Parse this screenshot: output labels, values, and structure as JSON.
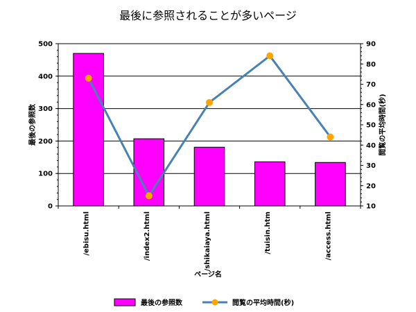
{
  "chart_data": {
    "type": "bar",
    "title": "最後に参照されることが多いページ",
    "xlabel": "ページ名",
    "ylabel_left": "最後の参照数",
    "ylabel_right": "閲覧の平均時間(秒)",
    "categories": [
      "/ebisu.html",
      "/index2.html",
      "/shikaiaya.html",
      "/tuisin.htm",
      "/access.html"
    ],
    "ylim_left": [
      0,
      500
    ],
    "yticks_left": [
      0,
      100,
      200,
      300,
      400,
      500
    ],
    "ylim_right": [
      10,
      90
    ],
    "yticks_right": [
      10,
      20,
      30,
      40,
      50,
      60,
      70,
      80,
      90
    ],
    "grid": true,
    "legend_position": "bottom",
    "series": [
      {
        "name": "最後の参照数",
        "kind": "bar",
        "axis": "left",
        "color": "#ff00ff",
        "values": [
          470,
          207,
          181,
          136,
          134
        ]
      },
      {
        "name": "閲覧の平均時間(秒)",
        "kind": "line",
        "axis": "right",
        "color": "#4682b4",
        "marker_color": "#ffa500",
        "values": [
          73,
          15,
          61,
          84,
          44
        ]
      }
    ]
  }
}
